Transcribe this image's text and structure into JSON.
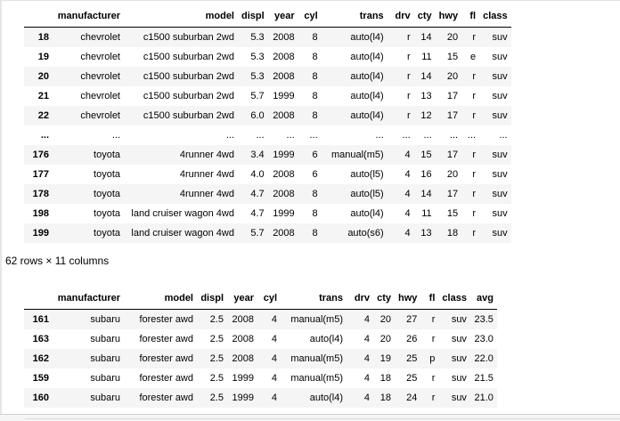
{
  "table1": {
    "columns": [
      "",
      "manufacturer",
      "model",
      "displ",
      "year",
      "cyl",
      "trans",
      "drv",
      "cty",
      "hwy",
      "fl",
      "class"
    ],
    "rows": [
      [
        "18",
        "chevrolet",
        "c1500 suburban 2wd",
        "5.3",
        "2008",
        "8",
        "auto(l4)",
        "r",
        "14",
        "20",
        "r",
        "suv"
      ],
      [
        "19",
        "chevrolet",
        "c1500 suburban 2wd",
        "5.3",
        "2008",
        "8",
        "auto(l4)",
        "r",
        "11",
        "15",
        "e",
        "suv"
      ],
      [
        "20",
        "chevrolet",
        "c1500 suburban 2wd",
        "5.3",
        "2008",
        "8",
        "auto(l4)",
        "r",
        "14",
        "20",
        "r",
        "suv"
      ],
      [
        "21",
        "chevrolet",
        "c1500 suburban 2wd",
        "5.7",
        "1999",
        "8",
        "auto(l4)",
        "r",
        "13",
        "17",
        "r",
        "suv"
      ],
      [
        "22",
        "chevrolet",
        "c1500 suburban 2wd",
        "6.0",
        "2008",
        "8",
        "auto(l4)",
        "r",
        "12",
        "17",
        "r",
        "suv"
      ],
      [
        "...",
        "...",
        "...",
        "...",
        "...",
        "...",
        "...",
        "...",
        "...",
        "...",
        "...",
        "..."
      ],
      [
        "176",
        "toyota",
        "4runner 4wd",
        "3.4",
        "1999",
        "6",
        "manual(m5)",
        "4",
        "15",
        "17",
        "r",
        "suv"
      ],
      [
        "177",
        "toyota",
        "4runner 4wd",
        "4.0",
        "2008",
        "6",
        "auto(l5)",
        "4",
        "16",
        "20",
        "r",
        "suv"
      ],
      [
        "178",
        "toyota",
        "4runner 4wd",
        "4.7",
        "2008",
        "8",
        "auto(l5)",
        "4",
        "14",
        "17",
        "r",
        "suv"
      ],
      [
        "198",
        "toyota",
        "land cruiser wagon 4wd",
        "4.7",
        "1999",
        "8",
        "auto(l4)",
        "4",
        "11",
        "15",
        "r",
        "suv"
      ],
      [
        "199",
        "toyota",
        "land cruiser wagon 4wd",
        "5.7",
        "2008",
        "8",
        "auto(s6)",
        "4",
        "13",
        "18",
        "r",
        "suv"
      ]
    ]
  },
  "summary": "62 rows × 11 columns",
  "table2": {
    "columns": [
      "",
      "manufacturer",
      "model",
      "displ",
      "year",
      "cyl",
      "trans",
      "drv",
      "cty",
      "hwy",
      "fl",
      "class",
      "avg"
    ],
    "rows": [
      [
        "161",
        "subaru",
        "forester awd",
        "2.5",
        "2008",
        "4",
        "manual(m5)",
        "4",
        "20",
        "27",
        "r",
        "suv",
        "23.5"
      ],
      [
        "163",
        "subaru",
        "forester awd",
        "2.5",
        "2008",
        "4",
        "auto(l4)",
        "4",
        "20",
        "26",
        "r",
        "suv",
        "23.0"
      ],
      [
        "162",
        "subaru",
        "forester awd",
        "2.5",
        "2008",
        "4",
        "manual(m5)",
        "4",
        "19",
        "25",
        "p",
        "suv",
        "22.0"
      ],
      [
        "159",
        "subaru",
        "forester awd",
        "2.5",
        "1999",
        "4",
        "manual(m5)",
        "4",
        "18",
        "25",
        "r",
        "suv",
        "21.5"
      ],
      [
        "160",
        "subaru",
        "forester awd",
        "2.5",
        "1999",
        "4",
        "auto(l4)",
        "4",
        "18",
        "24",
        "r",
        "suv",
        "21.0"
      ]
    ]
  }
}
